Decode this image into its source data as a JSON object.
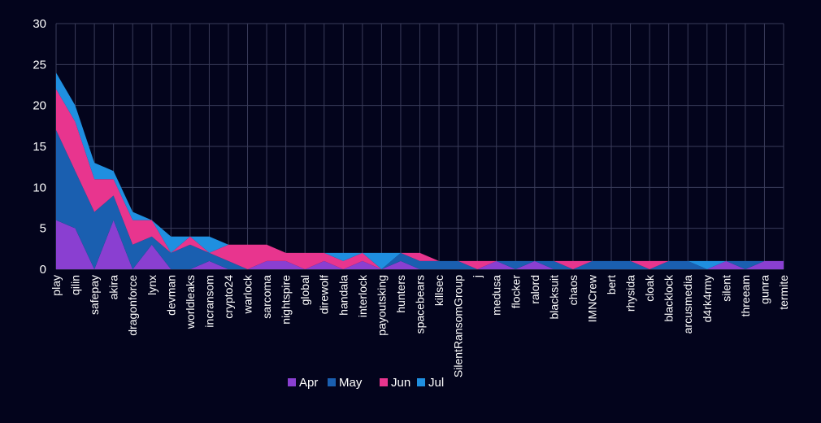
{
  "chart_data": {
    "type": "area",
    "stacked": true,
    "categories": [
      "play",
      "qilin",
      "safepay",
      "akira",
      "dragonforce",
      "lynx",
      "devman",
      "worldleaks",
      "incransom",
      "crypto24",
      "warlock",
      "sarcoma",
      "nightspire",
      "global",
      "direwolf",
      "handala",
      "interlock",
      "payoutsking",
      "hunters",
      "spacebears",
      "killsec",
      "SilentRansomGroup",
      "j",
      "medusa",
      "flocker",
      "ralord",
      "blacksuit",
      "chaos",
      "IMNCrew",
      "bert",
      "rhysida",
      "cloak",
      "blacklock",
      "arcusmedia",
      "d4rk4rmy",
      "silent",
      "threeam",
      "gunra",
      "termite"
    ],
    "series": [
      {
        "name": "Apr",
        "color": "#8a3fd1",
        "values": [
          6,
          5,
          0,
          6,
          0,
          3,
          0,
          0,
          1,
          0,
          0,
          1,
          1,
          0,
          1,
          0,
          1,
          0,
          1,
          0,
          0,
          0,
          0,
          1,
          0,
          1,
          0,
          0,
          0,
          0,
          0,
          0,
          0,
          0,
          0,
          1,
          0,
          1,
          1
        ]
      },
      {
        "name": "May",
        "color": "#1a5fb0",
        "values": [
          11,
          7,
          7,
          3,
          3,
          1,
          2,
          3,
          1,
          1,
          0,
          0,
          0,
          0,
          0,
          0,
          0,
          0,
          1,
          1,
          1,
          1,
          0,
          0,
          1,
          0,
          1,
          0,
          1,
          1,
          1,
          0,
          1,
          1,
          0,
          0,
          1,
          0,
          0
        ]
      },
      {
        "name": "Jun",
        "color": "#e8358e",
        "values": [
          5,
          6,
          4,
          2,
          3,
          2,
          0,
          1,
          0,
          2,
          3,
          2,
          1,
          2,
          1,
          1,
          1,
          0,
          0,
          1,
          0,
          0,
          1,
          0,
          0,
          0,
          0,
          1,
          0,
          0,
          0,
          1,
          0,
          0,
          0,
          0,
          0,
          0,
          0
        ]
      },
      {
        "name": "Jul",
        "color": "#1f8fe0",
        "values": [
          2,
          2,
          2,
          1,
          1,
          0,
          2,
          0,
          2,
          0,
          0,
          0,
          0,
          0,
          0,
          1,
          0,
          2,
          0,
          0,
          0,
          0,
          0,
          0,
          0,
          0,
          0,
          0,
          0,
          0,
          0,
          0,
          0,
          0,
          1,
          0,
          0,
          0,
          0
        ]
      }
    ],
    "ylim": [
      0,
      30
    ],
    "yticks": [
      0,
      5,
      10,
      15,
      20,
      25,
      30
    ],
    "grid": true,
    "legend_position": "bottom"
  }
}
